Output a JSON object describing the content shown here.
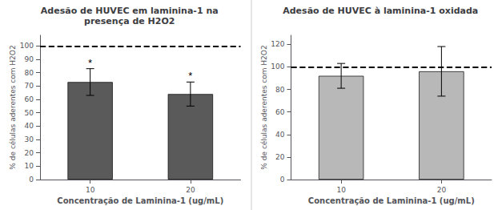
{
  "chart_data": [
    {
      "type": "bar",
      "title": "Adesão de HUVEC em laminina-1 na\npresença de H2O2",
      "categories": [
        "10",
        "20"
      ],
      "values": [
        73,
        64
      ],
      "errors": [
        10,
        9
      ],
      "color": "#5a5a5a",
      "ylabel": "% de células aderentes com H2O2",
      "xlabel": "Concentração de Laminina-1 (ug/mL)",
      "ylim": [
        0,
        108
      ],
      "yticks": [
        0,
        10,
        20,
        30,
        40,
        50,
        60,
        70,
        80,
        90,
        100
      ],
      "hline": 100,
      "line_style": "dashed",
      "asterisks": [
        "*",
        "*"
      ],
      "grid": false
    },
    {
      "type": "bar",
      "title": "Adesão de HUVEC à laminina-1 oxidada",
      "categories": [
        "10",
        "20"
      ],
      "values": [
        92,
        96
      ],
      "errors": [
        11,
        22
      ],
      "color": "#b8b8b8",
      "ylabel": "% de células aderentes com H2O2",
      "xlabel": "Concentração de Laminina-1 (ug/mL)",
      "ylim": [
        0,
        128
      ],
      "yticks": [
        0,
        20,
        40,
        60,
        80,
        100,
        120
      ],
      "hline": 100,
      "line_style": "dashed",
      "grid": false
    }
  ]
}
